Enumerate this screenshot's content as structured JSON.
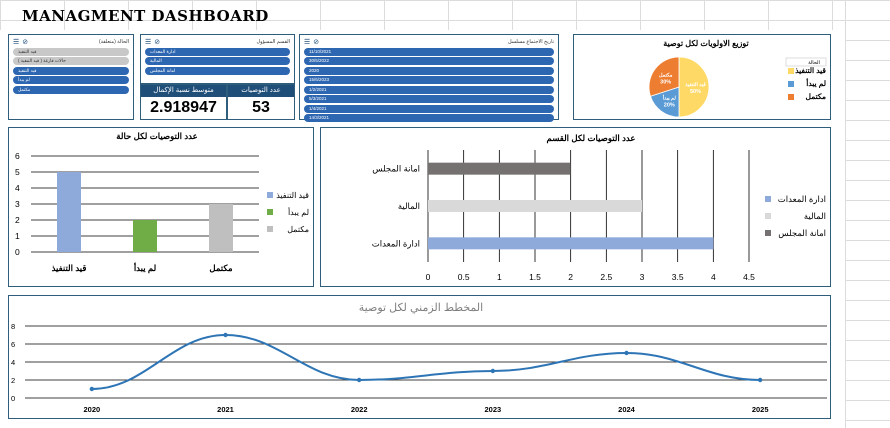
{
  "dashboard_title": "MANAGMENT DASHBOARD",
  "slicers": [
    {
      "header": "الحالة (متعلقة)",
      "items": [
        {
          "label": "قيد التنفيذ",
          "selected": false
        },
        {
          "label": "حالات فارغة ( قيد التنفيذ )",
          "selected": false
        },
        {
          "label": "قيد التنفيذ",
          "selected": true
        },
        {
          "label": "لم يبدأ",
          "selected": true
        },
        {
          "label": "مكتمل",
          "selected": true
        }
      ]
    },
    {
      "header": "القسم المسؤول",
      "items": [
        {
          "label": "ادارة المعدات",
          "selected": true
        },
        {
          "label": "المالية",
          "selected": true
        },
        {
          "label": "امانة المجلس",
          "selected": true
        }
      ]
    },
    {
      "header": "تاريخ الاجتماع مسلسل",
      "items": [
        {
          "label": "11/10/2021",
          "selected": true
        },
        {
          "label": "30/5/2022",
          "selected": true
        },
        {
          "label": "2020",
          "selected": true
        },
        {
          "label": "15/6/2023",
          "selected": true
        },
        {
          "label": "1/2/2021",
          "selected": true
        },
        {
          "label": "5/3/2021",
          "selected": true
        },
        {
          "label": "1/4/2021",
          "selected": true
        },
        {
          "label": "14/3/2021",
          "selected": true
        }
      ]
    }
  ],
  "kpis": [
    {
      "label": "متوسط نسبة الإكمال",
      "value": "2.918947"
    },
    {
      "label": "عدد التوصيات",
      "value": "53"
    }
  ],
  "chart_data": [
    {
      "type": "pie",
      "title": "توزيع الاولويات لكل توصية",
      "slices": [
        {
          "label": "قيد التنفيذ",
          "value": 50,
          "color": "#ffd966"
        },
        {
          "label": "لم يبدأ",
          "value": 20,
          "color": "#5b9bd5"
        },
        {
          "label": "مكتمل",
          "value": 30,
          "color": "#ed7d31"
        }
      ],
      "data_labels": [
        "قيد التنفيذ 50%",
        "لم يبدأ 20%",
        "مكتمل 30%"
      ],
      "legend_title": "الحالة",
      "legend": [
        {
          "label": "قيد التنفيذ",
          "color": "#ffd966"
        },
        {
          "label": "لم يبدأ",
          "color": "#5b9bd5"
        },
        {
          "label": "مكتمل",
          "color": "#ed7d31"
        }
      ],
      "legend_position": "right"
    },
    {
      "type": "bar",
      "title": "عدد التوصيات لكل حالة",
      "categories": [
        "قيد التنفيذ",
        "لم يبدأ",
        "مكتمل"
      ],
      "values": [
        5,
        2,
        3
      ],
      "colors": [
        "#8eaadb",
        "#70ad47",
        "#bfbfbf"
      ],
      "ylim": [
        0,
        6
      ],
      "yticks": [
        "0",
        "1",
        "2",
        "3",
        "4",
        "5",
        "6"
      ],
      "grid": true,
      "legend": [
        {
          "label": "قيد التنفيذ",
          "color": "#8eaadb"
        },
        {
          "label": "لم يبدأ",
          "color": "#70ad47"
        },
        {
          "label": "مكتمل",
          "color": "#bfbfbf"
        }
      ],
      "legend_position": "right"
    },
    {
      "type": "bar",
      "orientation": "horizontal",
      "title": "عدد التوصيات لكل القسم",
      "categories": [
        "امانة المجلس",
        "المالية",
        "ادارة المعدات"
      ],
      "values": [
        2,
        3,
        4
      ],
      "colors": [
        "#767171",
        "#d9d9d9",
        "#8eaadb"
      ],
      "xlim": [
        0,
        4.5
      ],
      "xticks": [
        "0",
        "0.5",
        "1",
        "1.5",
        "2",
        "2.5",
        "3",
        "3.5",
        "4",
        "4.5"
      ],
      "grid": true,
      "legend": [
        {
          "label": "ادارة المعدات",
          "color": "#8eaadb"
        },
        {
          "label": "المالية",
          "color": "#d9d9d9"
        },
        {
          "label": "امانة المجلس",
          "color": "#767171"
        }
      ],
      "legend_position": "right"
    },
    {
      "type": "line",
      "title": "المخطط الزمني لكل توصية",
      "x": [
        "2020",
        "2021",
        "2022",
        "2023",
        "2024",
        "2025"
      ],
      "values": [
        1,
        7,
        2,
        3,
        5,
        2
      ],
      "ylim": [
        0,
        8
      ],
      "yticks": [
        "0",
        "2",
        "4",
        "6",
        "8"
      ],
      "color": "#2e75b6",
      "grid": true
    }
  ]
}
